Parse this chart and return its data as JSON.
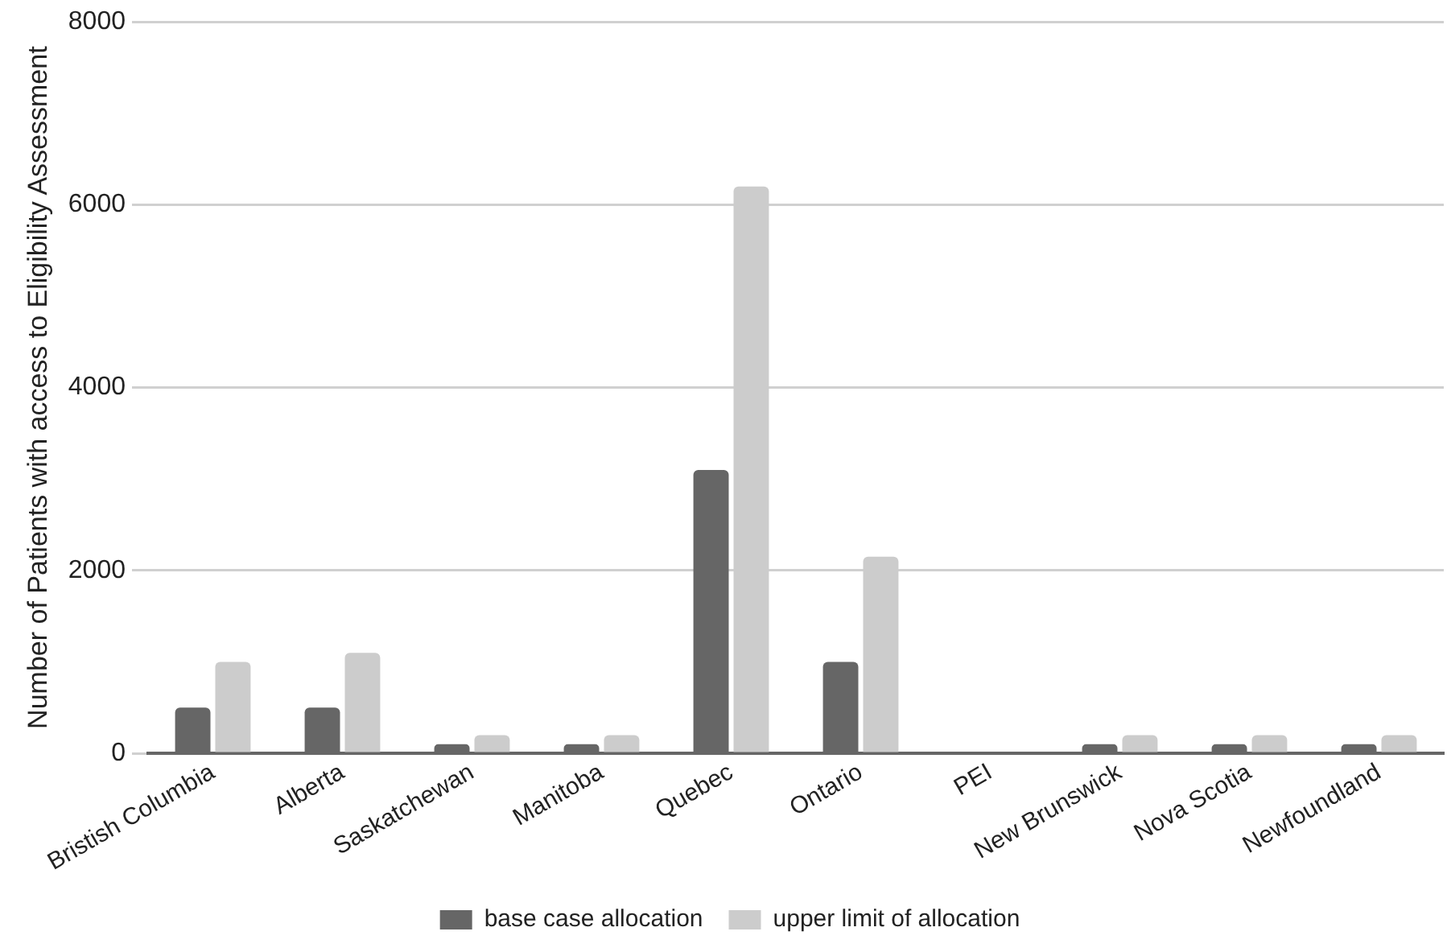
{
  "chart_data": {
    "type": "bar",
    "ylabel": "Number of Patients with access to Eligibility Assessment",
    "categories": [
      "Bristish Columbia",
      "Alberta",
      "Saskatchewan",
      "Manitoba",
      "Quebec",
      "Ontario",
      "PEI",
      "New Brunswick",
      "Nova Scotia",
      "Newfoundland"
    ],
    "series": [
      {
        "name": "base case allocation",
        "color": "#666666",
        "values": [
          500,
          500,
          100,
          100,
          3100,
          1000,
          0,
          100,
          100,
          100
        ]
      },
      {
        "name": "upper limit of allocation",
        "color": "#cccccc",
        "values": [
          1000,
          1100,
          200,
          200,
          6200,
          2150,
          0,
          200,
          200,
          200
        ]
      }
    ],
    "ylim": [
      0,
      8000
    ],
    "yticks": [
      0,
      2000,
      4000,
      6000,
      8000
    ],
    "grid": "y",
    "legend": "bottom"
  }
}
